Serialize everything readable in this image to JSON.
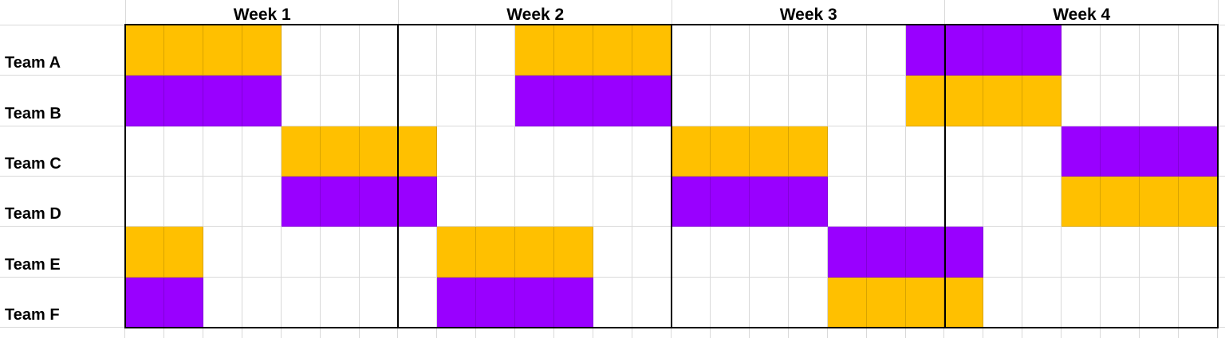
{
  "app": {
    "background_color": "#FFFFFF",
    "gridline_color": "#D9D9D9",
    "chart_border_color": "#000000"
  },
  "chart_data": {
    "type": "gantt",
    "title": "",
    "columns_unit": "day",
    "days_per_week": 7,
    "total_days": 28,
    "grid": true,
    "legend_position": "none",
    "week_headers": [
      "Week 1",
      "Week 2",
      "Week 3",
      "Week 4"
    ],
    "teams": [
      "Team A",
      "Team B",
      "Team C",
      "Team D",
      "Team E",
      "Team F"
    ],
    "colors": {
      "orange": "#FFC000",
      "purple": "#9900FF"
    },
    "series": [
      {
        "team": "Team A",
        "bars": [
          {
            "start_day": 1,
            "end_day": 4,
            "color": "orange"
          },
          {
            "start_day": 11,
            "end_day": 14,
            "color": "orange"
          },
          {
            "start_day": 21,
            "end_day": 24,
            "color": "purple"
          }
        ]
      },
      {
        "team": "Team B",
        "bars": [
          {
            "start_day": 1,
            "end_day": 4,
            "color": "purple"
          },
          {
            "start_day": 11,
            "end_day": 14,
            "color": "purple"
          },
          {
            "start_day": 21,
            "end_day": 24,
            "color": "orange"
          }
        ]
      },
      {
        "team": "Team C",
        "bars": [
          {
            "start_day": 5,
            "end_day": 8,
            "color": "orange"
          },
          {
            "start_day": 15,
            "end_day": 18,
            "color": "orange"
          },
          {
            "start_day": 25,
            "end_day": 28,
            "color": "purple"
          }
        ]
      },
      {
        "team": "Team D",
        "bars": [
          {
            "start_day": 5,
            "end_day": 8,
            "color": "purple"
          },
          {
            "start_day": 15,
            "end_day": 18,
            "color": "purple"
          },
          {
            "start_day": 25,
            "end_day": 28,
            "color": "orange"
          }
        ]
      },
      {
        "team": "Team E",
        "bars": [
          {
            "start_day": 1,
            "end_day": 2,
            "color": "orange"
          },
          {
            "start_day": 9,
            "end_day": 12,
            "color": "orange"
          },
          {
            "start_day": 19,
            "end_day": 22,
            "color": "purple"
          }
        ]
      },
      {
        "team": "Team F",
        "bars": [
          {
            "start_day": 1,
            "end_day": 2,
            "color": "purple"
          },
          {
            "start_day": 9,
            "end_day": 12,
            "color": "purple"
          },
          {
            "start_day": 19,
            "end_day": 22,
            "color": "orange"
          }
        ]
      }
    ]
  }
}
